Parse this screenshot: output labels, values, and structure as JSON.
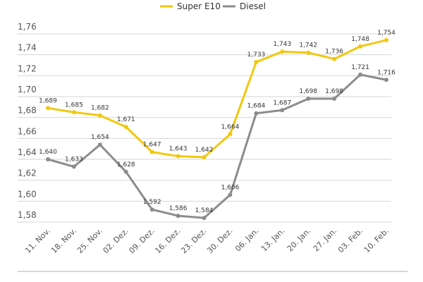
{
  "chart_data": {
    "type": "line",
    "title": "",
    "xlabel": "",
    "ylabel": "",
    "ylim": [
      1.58,
      1.76
    ],
    "yticks": [
      "1,58",
      "1,60",
      "1,62",
      "1,64",
      "1,66",
      "1,68",
      "1,70",
      "1,72",
      "1,74",
      "1,76"
    ],
    "grid": true,
    "legend_position": "top-center",
    "categories": [
      "11. Nov.",
      "18. Nov.",
      "25. Nov.",
      "02. Dez.",
      "09. Dez.",
      "16. Dez.",
      "23. Dez.",
      "30. Dez.",
      "06. Jan.",
      "13. Jan.",
      "20. Jan.",
      "27. Jan.",
      "03. Feb.",
      "10. Feb."
    ],
    "series": [
      {
        "name": "Super E10",
        "color": "#f2c80f",
        "values": [
          1.689,
          1.685,
          1.682,
          1.671,
          1.647,
          1.643,
          1.642,
          1.664,
          1.733,
          1.743,
          1.742,
          1.736,
          1.748,
          1.754
        ],
        "labels": [
          "1,689",
          "1,685",
          "1,682",
          "1,671",
          "1,647",
          "1,643",
          "1,642",
          "1,664",
          "1,733",
          "1,743",
          "1,742",
          "1,736",
          "1,748",
          "1,754"
        ]
      },
      {
        "name": "Diesel",
        "color": "#8c8c8c",
        "values": [
          1.64,
          1.633,
          1.654,
          1.628,
          1.592,
          1.586,
          1.584,
          1.606,
          1.684,
          1.687,
          1.698,
          1.698,
          1.721,
          1.716
        ],
        "labels": [
          "1,640",
          "1,633",
          "1,654",
          "1,628",
          "1,592",
          "1,586",
          "1,584",
          "1,606",
          "1,684",
          "1,687",
          "1,698",
          "1,698",
          "1,721",
          "1,716"
        ]
      }
    ]
  }
}
